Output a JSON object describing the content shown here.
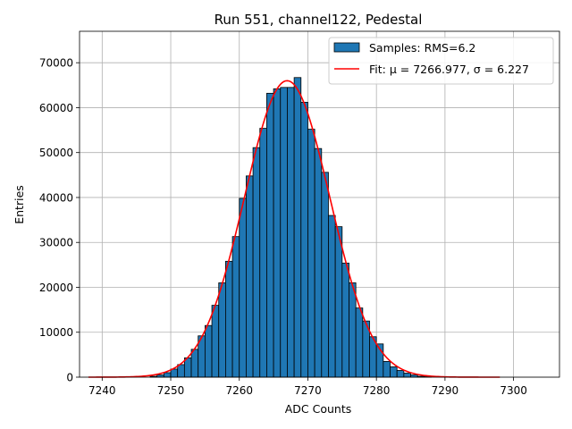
{
  "chart_data": {
    "type": "bar",
    "title": "Run 551, channel122, Pedestal",
    "xlabel": "ADC Counts",
    "ylabel": "Entries",
    "xlim": [
      7236.7,
      7306.7
    ],
    "ylim": [
      0,
      77000
    ],
    "xticks": [
      7240,
      7250,
      7260,
      7270,
      7280,
      7290,
      7300
    ],
    "yticks": [
      0,
      10000,
      20000,
      30000,
      40000,
      50000,
      60000,
      70000
    ],
    "grid": true,
    "legend_position": "upper-right",
    "bin_width": 1,
    "bar_color": "#1f77b4",
    "fit_color": "#ff0000",
    "series": [
      {
        "name": "Samples: RMS=6.2",
        "type": "histogram",
        "bin_edges_start": 7247,
        "values": [
          200,
          500,
          1000,
          1800,
          2800,
          4300,
          6200,
          9200,
          11500,
          16000,
          21000,
          25800,
          31300,
          39800,
          44800,
          51100,
          55400,
          63200,
          64200,
          64500,
          64500,
          66700,
          61200,
          55200,
          50900,
          45600,
          36000,
          33500,
          25400,
          21000,
          15400,
          12500,
          9000,
          7400,
          3500,
          2300,
          1500,
          900,
          500,
          200,
          100
        ]
      },
      {
        "name": "Fit: μ = 7266.977, σ = 6.227",
        "type": "line",
        "function": "gaussian",
        "mu": 7266.977,
        "sigma": 6.227,
        "amplitude": 66000,
        "x_range": [
          7238,
          7298
        ]
      }
    ]
  }
}
